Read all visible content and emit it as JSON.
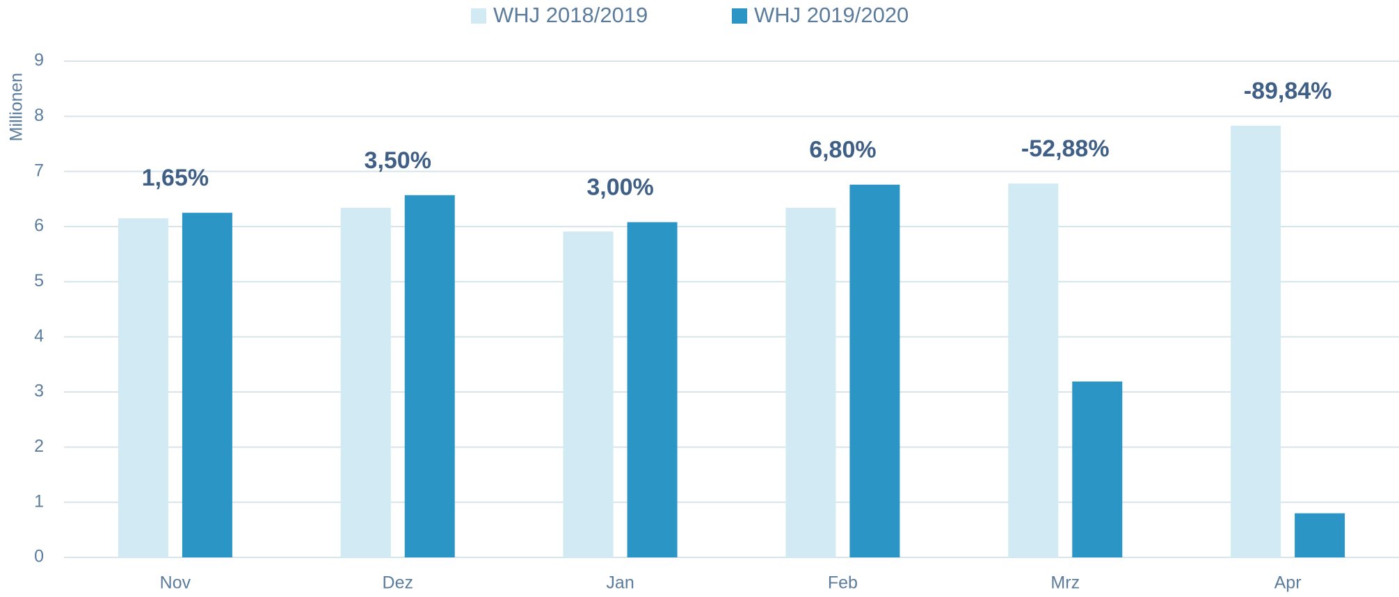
{
  "chart_data": {
    "type": "bar",
    "y_axis_label": "Millionen",
    "categories": [
      "Nov",
      "Dez",
      "Jan",
      "Feb",
      "Mrz",
      "Apr"
    ],
    "series": [
      {
        "name": "WHJ 2018/2019",
        "color": "#d2eaf4",
        "values": [
          6.15,
          6.34,
          5.91,
          6.34,
          6.78,
          7.83
        ]
      },
      {
        "name": "WHJ 2019/2020",
        "color": "#2b96c5",
        "values": [
          6.25,
          6.57,
          6.08,
          6.76,
          3.19,
          0.8
        ]
      }
    ],
    "annotations": [
      "1,65%",
      "3,50%",
      "3,00%",
      "6,80%",
      "-52,88%",
      "-89,84%"
    ],
    "ylim": [
      0,
      9
    ],
    "yticks": [
      0,
      1,
      2,
      3,
      4,
      5,
      6,
      7,
      8,
      9
    ],
    "grid": true,
    "legend": "top"
  }
}
